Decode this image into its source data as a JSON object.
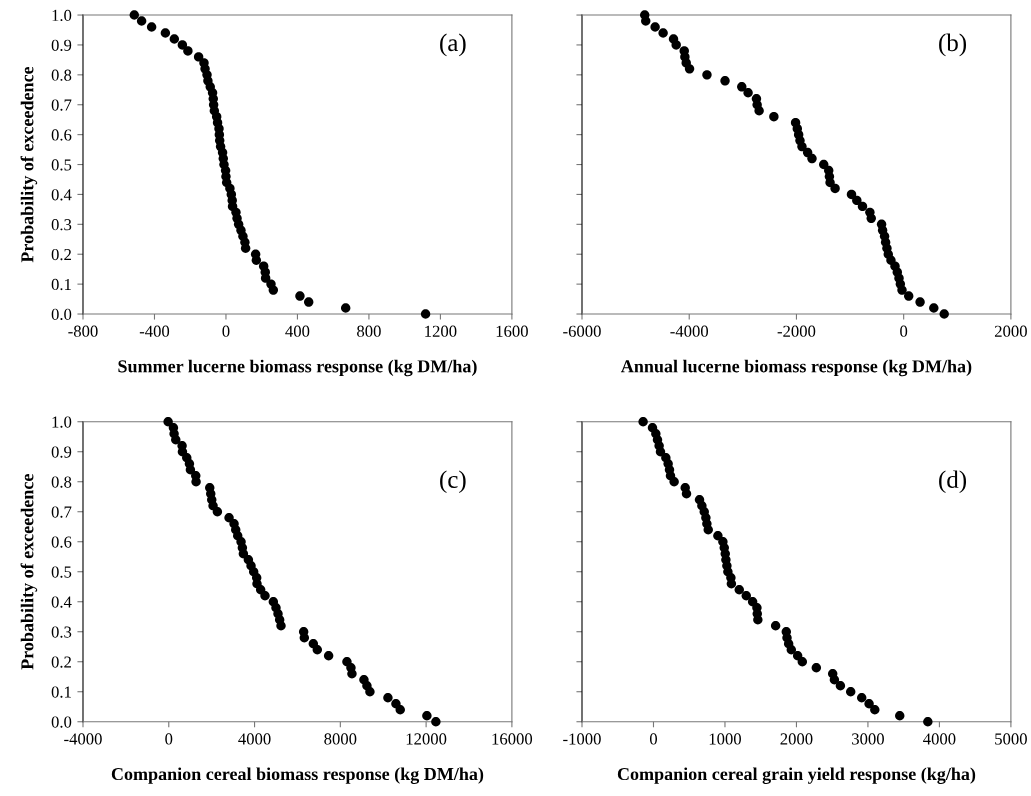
{
  "chart_data": [
    {
      "type": "scatter",
      "xlabel": "Summer lucerne biomass response (kg DM/ha)",
      "ylabel": "Probability of exceedence",
      "annotations": [
        "(a)"
      ],
      "color": "#000000",
      "marker": "circle",
      "grid": false,
      "x": [
        -513,
        -472,
        -416,
        -339,
        -289,
        -244,
        -213,
        -153,
        -123,
        -117,
        -106,
        -101,
        -88,
        -75,
        -71,
        -69,
        -65,
        -52,
        -47,
        -39,
        -37,
        -35,
        -30,
        -19,
        -15,
        -11,
        -2,
        0,
        4,
        22,
        30,
        35,
        37,
        56,
        62,
        71,
        84,
        95,
        106,
        110,
        166,
        170,
        211,
        220,
        222,
        252,
        265,
        414,
        463,
        670,
        1117
      ],
      "values": [
        1.0,
        0.98,
        0.96,
        0.94,
        0.92,
        0.9,
        0.88,
        0.86,
        0.84,
        0.82,
        0.8,
        0.78,
        0.76,
        0.74,
        0.72,
        0.7,
        0.68,
        0.66,
        0.64,
        0.62,
        0.6,
        0.58,
        0.56,
        0.54,
        0.52,
        0.5,
        0.48,
        0.46,
        0.44,
        0.42,
        0.4,
        0.38,
        0.36,
        0.34,
        0.32,
        0.3,
        0.28,
        0.26,
        0.24,
        0.22,
        0.2,
        0.18,
        0.16,
        0.14,
        0.12,
        0.1,
        0.08,
        0.06,
        0.04,
        0.02,
        0.0
      ],
      "xlim": [
        -800,
        1600
      ],
      "xticks": [
        -800,
        -400,
        0,
        400,
        800,
        1200,
        1600
      ],
      "ylim": [
        0,
        1
      ],
      "yticks": [
        {
          "value": 0,
          "label": "0.0"
        },
        {
          "value": 0.1,
          "label": "0.1"
        },
        {
          "value": 0.2,
          "label": "0.2"
        },
        {
          "value": 0.3,
          "label": "0.3"
        },
        {
          "value": 0.4,
          "label": "0.4"
        },
        {
          "value": 0.5,
          "label": "0.5"
        },
        {
          "value": 0.6,
          "label": "0.6"
        },
        {
          "value": 0.7,
          "label": "0.7"
        },
        {
          "value": 0.8,
          "label": "0.8"
        },
        {
          "value": 0.9,
          "label": "0.9"
        },
        {
          "value": 1,
          "label": "1.0"
        }
      ]
    },
    {
      "type": "scatter",
      "xlabel": "Annual lucerne biomass response (kg DM/ha)",
      "annotations": [
        "(b)"
      ],
      "color": "#000000",
      "marker": "circle",
      "grid": false,
      "tick_labels": "x",
      "x": [
        -4830,
        -4811,
        -4636,
        -4487,
        -4293,
        -4243,
        -4093,
        -4081,
        -4056,
        -3994,
        -3669,
        -3332,
        -3020,
        -2902,
        -2746,
        -2733,
        -2696,
        -2421,
        -2016,
        -1984,
        -1959,
        -1934,
        -1897,
        -1791,
        -1710,
        -1491,
        -1398,
        -1385,
        -1373,
        -1279,
        -973,
        -874,
        -768,
        -630,
        -605,
        -412,
        -393,
        -356,
        -337,
        -312,
        -287,
        -237,
        -162,
        -119,
        -87,
        -62,
        -31,
        94,
        306,
        562,
        756
      ],
      "values": [
        1.0,
        0.98,
        0.96,
        0.94,
        0.92,
        0.9,
        0.88,
        0.86,
        0.84,
        0.82,
        0.8,
        0.78,
        0.76,
        0.74,
        0.72,
        0.7,
        0.68,
        0.66,
        0.64,
        0.62,
        0.6,
        0.58,
        0.56,
        0.54,
        0.52,
        0.5,
        0.48,
        0.46,
        0.44,
        0.42,
        0.4,
        0.38,
        0.36,
        0.34,
        0.32,
        0.3,
        0.28,
        0.26,
        0.24,
        0.22,
        0.2,
        0.18,
        0.16,
        0.14,
        0.12,
        0.1,
        0.08,
        0.06,
        0.04,
        0.02,
        0.0
      ],
      "xlim": [
        -6000,
        2000
      ],
      "xticks": [
        -6000,
        -4000,
        -2000,
        0,
        2000
      ],
      "ylim": [
        0,
        1
      ],
      "yticks": [
        0,
        0.1,
        0.2,
        0.3,
        0.4,
        0.5,
        0.6,
        0.7,
        0.8,
        0.9,
        1
      ]
    },
    {
      "type": "scatter",
      "xlabel": "Companion cereal biomass response (kg DM/ha)",
      "ylabel": "Probability of exceedence",
      "annotations": [
        "(c)"
      ],
      "color": "#000000",
      "marker": "circle",
      "grid": false,
      "x": [
        -30,
        217,
        248,
        326,
        621,
        637,
        839,
        963,
        1009,
        1258,
        1273,
        1910,
        1957,
        2003,
        2065,
        2267,
        2811,
        3044,
        3122,
        3215,
        3370,
        3432,
        3479,
        3712,
        3836,
        3960,
        4100,
        4115,
        4286,
        4488,
        4876,
        5000,
        5094,
        5171,
        5234,
        6290,
        6321,
        6740,
        6926,
        7454,
        8308,
        8495,
        8542,
        9101,
        9240,
        9380,
        10219,
        10592,
        10793,
        12036,
        12455
      ],
      "values": [
        1.0,
        0.98,
        0.96,
        0.94,
        0.92,
        0.9,
        0.88,
        0.86,
        0.84,
        0.82,
        0.8,
        0.78,
        0.76,
        0.74,
        0.72,
        0.7,
        0.68,
        0.66,
        0.64,
        0.62,
        0.6,
        0.58,
        0.56,
        0.54,
        0.52,
        0.5,
        0.48,
        0.46,
        0.44,
        0.42,
        0.4,
        0.38,
        0.36,
        0.34,
        0.32,
        0.3,
        0.28,
        0.26,
        0.24,
        0.22,
        0.2,
        0.18,
        0.16,
        0.14,
        0.12,
        0.1,
        0.08,
        0.06,
        0.04,
        0.02,
        0.0
      ],
      "xlim": [
        -4000,
        16000
      ],
      "xticks": [
        -4000,
        0,
        4000,
        8000,
        12000,
        16000
      ],
      "ylim": [
        0,
        1
      ],
      "yticks": [
        {
          "value": 0,
          "label": "0.0"
        },
        {
          "value": 0.1,
          "label": "0.1"
        },
        {
          "value": 0.2,
          "label": "0.2"
        },
        {
          "value": 0.3,
          "label": "0.3"
        },
        {
          "value": 0.4,
          "label": "0.4"
        },
        {
          "value": 0.5,
          "label": "0.5"
        },
        {
          "value": 0.6,
          "label": "0.6"
        },
        {
          "value": 0.7,
          "label": "0.7"
        },
        {
          "value": 0.8,
          "label": "0.8"
        },
        {
          "value": 0.9,
          "label": "0.9"
        },
        {
          "value": 1,
          "label": "1.0"
        }
      ]
    },
    {
      "type": "scatter",
      "xlabel": "Companion cereal grain yield response (kg/ha)",
      "annotations": [
        "(d)"
      ],
      "color": "#000000",
      "marker": "circle",
      "grid": false,
      "tick_labels": "x",
      "x": [
        -145,
        -14,
        33,
        56,
        79,
        98,
        173,
        205,
        224,
        238,
        289,
        444,
        462,
        644,
        677,
        710,
        733,
        747,
        766,
        901,
        971,
        990,
        1004,
        1013,
        1027,
        1041,
        1083,
        1090,
        1200,
        1298,
        1387,
        1447,
        1452,
        1460,
        1709,
        1858,
        1868,
        1891,
        1928,
        2017,
        2082,
        2278,
        2507,
        2531,
        2615,
        2759,
        2913,
        3016,
        3096,
        3445,
        3838
      ],
      "values": [
        1.0,
        0.98,
        0.96,
        0.94,
        0.92,
        0.9,
        0.88,
        0.86,
        0.84,
        0.82,
        0.8,
        0.78,
        0.76,
        0.74,
        0.72,
        0.7,
        0.68,
        0.66,
        0.64,
        0.62,
        0.6,
        0.58,
        0.56,
        0.54,
        0.52,
        0.5,
        0.48,
        0.46,
        0.44,
        0.42,
        0.4,
        0.38,
        0.36,
        0.34,
        0.32,
        0.3,
        0.28,
        0.26,
        0.24,
        0.22,
        0.2,
        0.18,
        0.16,
        0.14,
        0.12,
        0.1,
        0.08,
        0.06,
        0.04,
        0.02,
        0.0
      ],
      "xlim": [
        -1000,
        5000
      ],
      "xticks": [
        -1000,
        0,
        1000,
        2000,
        3000,
        4000,
        5000
      ],
      "ylim": [
        0,
        1
      ],
      "yticks": [
        0,
        0.1,
        0.2,
        0.3,
        0.4,
        0.5,
        0.6,
        0.7,
        0.8,
        0.9,
        1
      ]
    }
  ]
}
